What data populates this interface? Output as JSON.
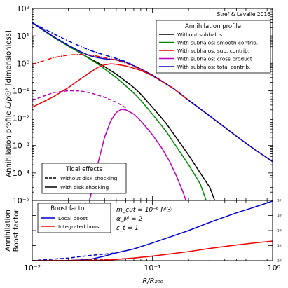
{
  "chart_data": [
    {
      "type": "line",
      "credit": "Stref & Lavalle 2016",
      "ylabel": "Annihilation profile ℒ/ρ☉² [dimensionless]",
      "xlabel": "",
      "xscale": "log",
      "yscale": "log",
      "xlim": [
        0.01,
        1
      ],
      "ylim": [
        1e-05,
        100
      ],
      "x_tick_labels": [
        "10⁻²",
        "10⁻¹",
        "10⁰"
      ],
      "y_tick_labels": [
        "10⁻⁵",
        "10⁻⁴",
        "10⁻³",
        "10⁻²",
        "10⁻¹",
        "10⁰",
        "10¹",
        "10²"
      ],
      "legend_title": "Annihilation profile",
      "legend_placement": "upper-right",
      "series": [
        {
          "name": "Without subhalos",
          "color": "#000000",
          "style": "solid",
          "points": [
            [
              0.01,
              30
            ],
            [
              0.015,
              9
            ],
            [
              0.02,
              4.2
            ],
            [
              0.025,
              2.4
            ],
            [
              0.03,
              1.5
            ],
            [
              0.035,
              1.05
            ],
            [
              0.04,
              0.75
            ],
            [
              0.05,
              0.4
            ],
            [
              0.06,
              0.22
            ],
            [
              0.07,
              0.13
            ],
            [
              0.08,
              0.075
            ],
            [
              0.1,
              0.025
            ],
            [
              0.13,
              0.0065
            ],
            [
              0.16,
              0.0018
            ],
            [
              0.2,
              0.00045
            ],
            [
              0.25,
              0.0001
            ],
            [
              0.3,
              3e-05
            ],
            [
              0.33,
              1e-05
            ]
          ]
        },
        {
          "name": "With subhalos: smooth contrib.",
          "color": "#008800",
          "style": "solid",
          "points": [
            [
              0.01,
              30
            ],
            [
              0.015,
              9
            ],
            [
              0.02,
              4.2
            ],
            [
              0.025,
              2.4
            ],
            [
              0.03,
              1.45
            ],
            [
              0.035,
              0.95
            ],
            [
              0.04,
              0.62
            ],
            [
              0.05,
              0.3
            ],
            [
              0.06,
              0.15
            ],
            [
              0.07,
              0.082
            ],
            [
              0.08,
              0.045
            ],
            [
              0.1,
              0.014
            ],
            [
              0.13,
              0.0033
            ],
            [
              0.16,
              0.00085
            ],
            [
              0.2,
              0.0002
            ],
            [
              0.25,
              4e-05
            ],
            [
              0.28,
              1e-05
            ]
          ]
        },
        {
          "name": "With subhalos: sub. contrib.",
          "color": "#ee0000",
          "style": "solid",
          "points": [
            [
              0.01,
              0.025
            ],
            [
              0.015,
              0.06
            ],
            [
              0.02,
              0.13
            ],
            [
              0.025,
              0.26
            ],
            [
              0.03,
              0.45
            ],
            [
              0.035,
              0.7
            ],
            [
              0.04,
              0.88
            ],
            [
              0.045,
              0.95
            ],
            [
              0.05,
              0.92
            ],
            [
              0.06,
              0.8
            ],
            [
              0.08,
              0.55
            ],
            [
              0.1,
              0.35
            ],
            [
              0.15,
              0.12
            ],
            [
              0.2,
              0.045
            ],
            [
              0.3,
              0.012
            ],
            [
              0.5,
              0.0022
            ],
            [
              0.7,
              0.00075
            ],
            [
              1.0,
              0.00026
            ]
          ]
        },
        {
          "name": "With subhalos: cross product",
          "color": "#bb00bb",
          "style": "solid",
          "points": [
            [
              0.03,
              1e-05
            ],
            [
              0.035,
              0.0002
            ],
            [
              0.04,
              0.002
            ],
            [
              0.045,
              0.008
            ],
            [
              0.05,
              0.016
            ],
            [
              0.055,
              0.021
            ],
            [
              0.06,
              0.02
            ],
            [
              0.07,
              0.014
            ],
            [
              0.08,
              0.008
            ],
            [
              0.1,
              0.0025
            ],
            [
              0.12,
              0.0008
            ],
            [
              0.14,
              0.00025
            ],
            [
              0.16,
              7e-05
            ],
            [
              0.18,
              2e-05
            ],
            [
              0.19,
              1e-05
            ]
          ]
        },
        {
          "name": "With subhalos: total contrib.",
          "color": "#0000cc",
          "style": "solid",
          "points": [
            [
              0.01,
              30
            ],
            [
              0.015,
              9.5
            ],
            [
              0.02,
              4.5
            ],
            [
              0.025,
              2.7
            ],
            [
              0.03,
              1.9
            ],
            [
              0.035,
              1.6
            ],
            [
              0.04,
              1.45
            ],
            [
              0.045,
              1.4
            ],
            [
              0.05,
              1.35
            ],
            [
              0.06,
              1.1
            ],
            [
              0.08,
              0.62
            ],
            [
              0.1,
              0.37
            ],
            [
              0.15,
              0.12
            ],
            [
              0.2,
              0.045
            ],
            [
              0.3,
              0.012
            ],
            [
              0.5,
              0.0022
            ],
            [
              0.7,
              0.00075
            ],
            [
              1.0,
              0.00026
            ]
          ]
        },
        {
          "name": "Total contrib. (without disk shocking)",
          "color": "#0000cc",
          "style": "dashdot",
          "points": [
            [
              0.01,
              30
            ],
            [
              0.015,
              12
            ],
            [
              0.02,
              6.5
            ],
            [
              0.025,
              4.2
            ],
            [
              0.03,
              3.0
            ],
            [
              0.035,
              2.4
            ],
            [
              0.04,
              2.0
            ],
            [
              0.05,
              1.5
            ],
            [
              0.06,
              1.15
            ],
            [
              0.08,
              0.62
            ],
            [
              0.1,
              0.37
            ],
            [
              0.15,
              0.12
            ],
            [
              0.2,
              0.045
            ]
          ]
        },
        {
          "name": "Sub. contrib. (without disk shocking)",
          "color": "#ee0000",
          "style": "dashdot",
          "points": [
            [
              0.01,
              0.9
            ],
            [
              0.015,
              1.6
            ],
            [
              0.02,
              2.0
            ],
            [
              0.025,
              2.1
            ],
            [
              0.03,
              2.0
            ],
            [
              0.035,
              1.8
            ],
            [
              0.04,
              1.6
            ],
            [
              0.05,
              1.3
            ],
            [
              0.06,
              1.0
            ],
            [
              0.08,
              0.6
            ],
            [
              0.1,
              0.36
            ],
            [
              0.15,
              0.12
            ],
            [
              0.2,
              0.045
            ]
          ]
        },
        {
          "name": "Cross product (without disk shocking)",
          "color": "#bb00bb",
          "style": "dashed",
          "points": [
            [
              0.01,
              0.045
            ],
            [
              0.015,
              0.085
            ],
            [
              0.02,
              0.1
            ],
            [
              0.025,
              0.098
            ],
            [
              0.03,
              0.085
            ],
            [
              0.04,
              0.058
            ],
            [
              0.05,
              0.038
            ],
            [
              0.055,
              0.03
            ],
            [
              0.06,
              0.024
            ]
          ]
        }
      ],
      "tidal_legend": {
        "title": "Tidal effects",
        "entries": [
          {
            "label": "Without disk shocking",
            "style": "dashed",
            "color": "#000000"
          },
          {
            "label": "With disk shocking",
            "style": "solid",
            "color": "#000000"
          }
        ]
      }
    },
    {
      "type": "line",
      "ylabel_line1": "Annihilation",
      "ylabel_line2": "Boost factor",
      "xlabel": "R/R₂₀₀",
      "xscale": "log",
      "yscale": "log",
      "xlim": [
        0.01,
        1
      ],
      "ylim": [
        1,
        10000
      ],
      "x_tick_labels": [
        "10⁻²",
        "10⁻¹",
        "10⁰"
      ],
      "y_tick_labels": [
        "10⁰",
        "10¹",
        "10²",
        "10³",
        "10⁴"
      ],
      "legend_title": "Boost factor",
      "legend_placement": "upper-left",
      "params": [
        "m_cut = 10⁻⁶ M☉",
        "α_M = 2",
        "ε_t = 1"
      ],
      "series": [
        {
          "name": "Local boost",
          "color": "#0000cc",
          "style": "solid",
          "points": [
            [
              0.01,
              1.0
            ],
            [
              0.02,
              1.02
            ],
            [
              0.03,
              1.2
            ],
            [
              0.04,
              2.0
            ],
            [
              0.05,
              3.3
            ],
            [
              0.07,
              6
            ],
            [
              0.1,
              15
            ],
            [
              0.15,
              45
            ],
            [
              0.2,
              100
            ],
            [
              0.3,
              350
            ],
            [
              0.5,
              1500
            ],
            [
              0.7,
              3500
            ],
            [
              1.0,
              9000
            ]
          ]
        },
        {
          "name": "Integrated boost",
          "color": "#ee0000",
          "style": "solid",
          "points": [
            [
              0.01,
              1.0
            ],
            [
              0.02,
              1.0
            ],
            [
              0.03,
              1.02
            ],
            [
              0.04,
              1.05
            ],
            [
              0.05,
              1.2
            ],
            [
              0.07,
              1.5
            ],
            [
              0.1,
              2.0
            ],
            [
              0.15,
              3.0
            ],
            [
              0.2,
              4.0
            ],
            [
              0.3,
              6.5
            ],
            [
              0.5,
              11
            ],
            [
              0.7,
              15
            ],
            [
              1.0,
              20
            ]
          ]
        },
        {
          "name": "Local boost (without disk shocking)",
          "color": "#0000cc",
          "style": "dashed",
          "points": [
            [
              0.01,
              1.0
            ],
            [
              0.02,
              1.5
            ],
            [
              0.03,
              2.2
            ],
            [
              0.04,
              2.7
            ],
            [
              0.05,
              3.3
            ]
          ]
        },
        {
          "name": "Integrated boost (without disk shocking)",
          "color": "#ee0000",
          "style": "dashed",
          "points": [
            [
              0.01,
              1.0
            ],
            [
              0.02,
              1.05
            ],
            [
              0.03,
              1.12
            ],
            [
              0.04,
              1.2
            ],
            [
              0.05,
              1.25
            ],
            [
              0.07,
              1.5
            ],
            [
              0.1,
              2.0
            ]
          ]
        }
      ]
    }
  ]
}
